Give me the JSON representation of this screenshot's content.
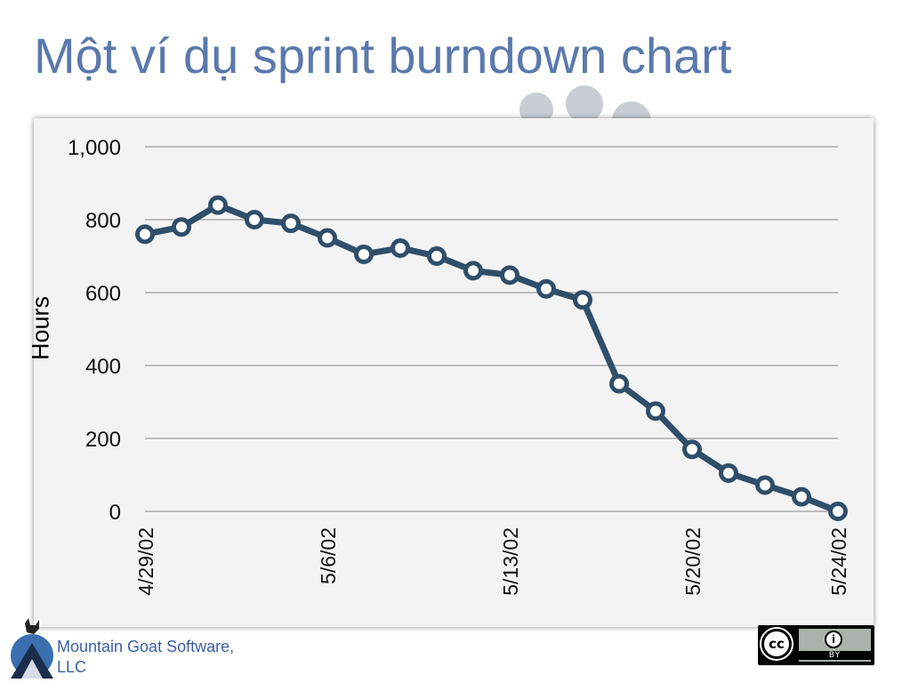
{
  "slide": {
    "title": "Một ví dụ sprint burndown chart"
  },
  "footer": {
    "company_line1": "Mountain Goat Software,",
    "company_line2": "LLC",
    "license_badge_text": "BY",
    "license_cc_text": "cc",
    "license_icon": "creative-commons-by-icon",
    "logo_icon": "mountain-goat-logo-icon"
  },
  "colors": {
    "title": "#5a79ad",
    "line": "#2f4e6a",
    "panel": "#f3f3f3",
    "grid": "#9a9a9a",
    "company": "#3a5fa8"
  },
  "chart_data": {
    "type": "line",
    "ylabel": "Hours",
    "xlabel": "",
    "title": "",
    "ylim": [
      0,
      1000
    ],
    "yticks": [
      0,
      200,
      400,
      600,
      800,
      1000
    ],
    "ytick_labels": [
      "0",
      "200",
      "400",
      "600",
      "800",
      "1,000"
    ],
    "grid": true,
    "x": [
      "4/29/02",
      "4/30/02",
      "5/1/02",
      "5/2/02",
      "5/3/02",
      "5/6/02",
      "5/7/02",
      "5/8/02",
      "5/9/02",
      "5/10/02",
      "5/13/02",
      "5/14/02",
      "5/15/02",
      "5/16/02",
      "5/17/02",
      "5/20/02",
      "5/21/02",
      "5/22/02",
      "5/23/02",
      "5/24/02"
    ],
    "xtick_labels": [
      "4/29/02",
      "5/6/02",
      "5/13/02",
      "5/20/02",
      "5/24/02"
    ],
    "xtick_indices": [
      0,
      5,
      10,
      15,
      19
    ],
    "series": [
      {
        "values": [
          760,
          780,
          840,
          800,
          790,
          750,
          705,
          722,
          700,
          660,
          648,
          610,
          580,
          350,
          275,
          170,
          105,
          72,
          40,
          0
        ]
      }
    ]
  }
}
